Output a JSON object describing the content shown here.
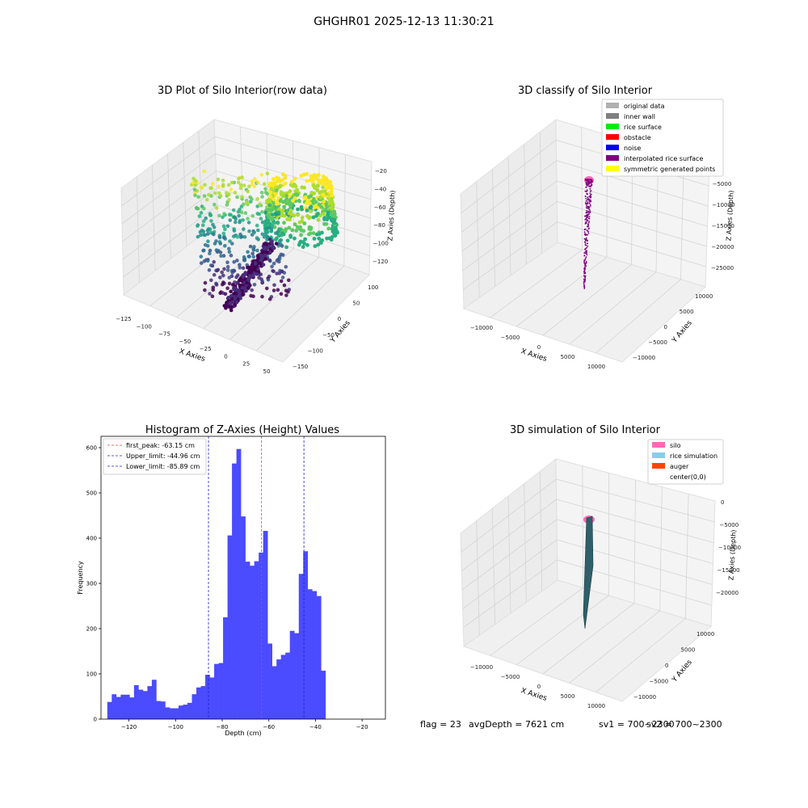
{
  "figure": {
    "suptitle": "GHGHR01 2025-12-13 11:30:21",
    "footer": {
      "flag": "flag = 23",
      "avg": "avgDepth = 7621 cm",
      "sv1": "sv1 = 700~2300",
      "sv2": "sv2 = 700~2300"
    }
  },
  "colors": {
    "hist_bar": "#4b4bff",
    "first_peak_line": "#ff3b3b",
    "limit_line": "#2222cc",
    "grid": "#d4d4d4",
    "pane": "#f2f2f2"
  },
  "chart_data": [
    {
      "type": "scatter",
      "projection": "3d",
      "title": "3D Plot of Silo Interior(row data)",
      "xlabel": "X Axies",
      "ylabel": "Y Axies",
      "zlabel": "Z Axies (Depth)",
      "xticks": [
        "−125",
        "−100",
        "−75",
        "−50",
        "−25",
        "0",
        "25",
        "50"
      ],
      "yticks": [
        "100",
        "50",
        "0",
        "−50",
        "−100",
        "−150"
      ],
      "zticks": [
        "−20",
        "−40",
        "−60",
        "−80",
        "−100",
        "−120"
      ],
      "colormap": "viridis",
      "grid": true
    },
    {
      "type": "scatter",
      "projection": "3d",
      "title": "3D classify of Silo Interior",
      "xlabel": "X Axies",
      "ylabel": "Y Axies",
      "zlabel": "Z Axies (Depth)",
      "xticks": [
        "−10000",
        "−5000",
        "0",
        "5000",
        "10000"
      ],
      "yticks": [
        "10000",
        "5000",
        "0",
        "−5000",
        "−10000"
      ],
      "zticks": [
        "0",
        "−5000",
        "−10000",
        "−15000",
        "−20000",
        "−25000"
      ],
      "legend_position": "top-right",
      "legend": [
        {
          "label": "original data",
          "color": "#b0b0b0"
        },
        {
          "label": "inner wall",
          "color": "#808080"
        },
        {
          "label": "rice surface",
          "color": "#00ee00"
        },
        {
          "label": "obstacle",
          "color": "#ff0000"
        },
        {
          "label": "noise",
          "color": "#0000ee"
        },
        {
          "label": "interpolated rice surface",
          "color": "#800080"
        },
        {
          "label": "symmetric generated points",
          "color": "#ffff00"
        }
      ],
      "grid": true
    },
    {
      "type": "bar",
      "title": "Histogram of Z-Axies (Height) Values",
      "xlabel": "Depth (cm)",
      "ylabel": "Frequency",
      "xlim": [
        -132,
        -10
      ],
      "ylim": [
        0,
        625
      ],
      "xticks": [
        -120,
        -100,
        -80,
        -60,
        -40,
        -20
      ],
      "yticks": [
        0,
        100,
        200,
        300,
        400,
        500,
        600
      ],
      "bin_start": -129.3,
      "bin_width": 1.91,
      "values": [
        38,
        55,
        49,
        54,
        54,
        48,
        75,
        65,
        62,
        73,
        87,
        40,
        39,
        26,
        24,
        24,
        30,
        32,
        36,
        55,
        70,
        73,
        98,
        92,
        122,
        124,
        225,
        406,
        565,
        597,
        448,
        348,
        339,
        349,
        368,
        416,
        167,
        117,
        132,
        142,
        147,
        195,
        190,
        321,
        371,
        287,
        283,
        272,
        107
      ],
      "vlines": [
        {
          "label": "first_peak: -63.15 cm",
          "x": -63.15,
          "color": "#ff3b3b"
        },
        {
          "label": "Upper_limit: -44.96 cm",
          "x": -44.96,
          "color": "#2222cc"
        },
        {
          "label": "Lower_limit: -85.89 cm",
          "x": -85.89,
          "color": "#2222cc"
        }
      ],
      "legend_position": "top-left"
    },
    {
      "type": "area",
      "projection": "3d",
      "title": "3D simulation of Silo Interior",
      "xlabel": "X Axies",
      "ylabel": "Y Axies",
      "zlabel": "Z Axies (Depth)",
      "xticks": [
        "−10000",
        "−5000",
        "0",
        "5000",
        "10000"
      ],
      "yticks": [
        "10000",
        "5000",
        "0",
        "−5000",
        "−10000"
      ],
      "zticks": [
        "0",
        "−5000",
        "−10000",
        "−15000",
        "−20000"
      ],
      "legend_position": "top-right",
      "legend": [
        {
          "label": "silo",
          "color": "#ff69b4"
        },
        {
          "label": "rice simulation",
          "color": "#87ceeb"
        },
        {
          "label": "auger",
          "color": "#ff4500"
        },
        {
          "label": "center(0,0)",
          "color": "#ffffff"
        }
      ],
      "grid": true
    }
  ]
}
